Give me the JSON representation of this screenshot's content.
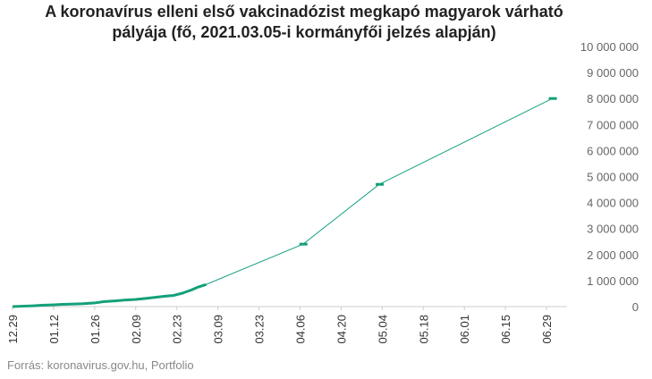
{
  "chart_data": {
    "type": "line",
    "title_lines": [
      "A koronavírus elleni első vakcinadózist megkapó magyarok várható",
      "pályája (fő, 2021.03.05-i kormányfői jelzés alapján)"
    ],
    "x_tick_labels": [
      "12.29",
      "01.12",
      "01.26",
      "02.09",
      "02.23",
      "03.09",
      "03.23",
      "04.06",
      "04.20",
      "05.04",
      "05.18",
      "06.01",
      "06.15",
      "06.29"
    ],
    "y_tick_labels": [
      "0",
      "1 000 000",
      "2 000 000",
      "3 000 000",
      "4 000 000",
      "5 000 000",
      "6 000 000",
      "7 000 000",
      "8 000 000",
      "9 000 000",
      "10 000 000"
    ],
    "ylim": [
      0,
      10000000
    ],
    "x_range": [
      "2020-12-29",
      "2021-07-06"
    ],
    "y_axis_position": "right",
    "grid": false,
    "actual_series": {
      "dates": [
        "2020-12-29",
        "2021-01-01",
        "2021-01-05",
        "2021-01-08",
        "2021-01-12",
        "2021-01-15",
        "2021-01-19",
        "2021-01-22",
        "2021-01-26",
        "2021-01-29",
        "2021-02-02",
        "2021-02-05",
        "2021-02-09",
        "2021-02-12",
        "2021-02-16",
        "2021-02-19",
        "2021-02-22",
        "2021-02-25",
        "2021-02-28",
        "2021-03-02",
        "2021-03-05"
      ],
      "values": [
        0,
        15000,
        30000,
        50000,
        70000,
        85000,
        100000,
        110000,
        140000,
        190000,
        220000,
        250000,
        275000,
        310000,
        360000,
        400000,
        430000,
        520000,
        640000,
        740000,
        850000
      ]
    },
    "projection_series": {
      "dates": [
        "2021-03-05",
        "2021-04-07",
        "2021-05-03",
        "2021-07-01"
      ],
      "values": [
        850000,
        2400000,
        4700000,
        8000000
      ]
    },
    "target_markers": [
      {
        "date": "2021-04-07",
        "value": 2400000
      },
      {
        "date": "2021-05-03",
        "value": 4700000
      },
      {
        "date": "2021-07-01",
        "value": 8000000
      }
    ],
    "colors": {
      "line": "#16a085",
      "marker": "#14a07a",
      "axis": "#cccccc",
      "tick_text": "#666666"
    }
  },
  "source": "Forrás: koronavirus.gov.hu, Portfolio"
}
